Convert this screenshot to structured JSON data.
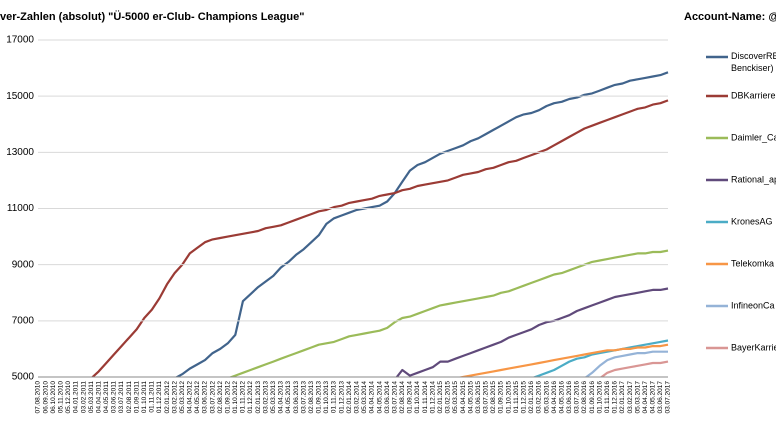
{
  "chart_data": {
    "type": "line",
    "title": "ver-Zahlen (absolut) \"Ü-5000 er-Club- Champions League\"",
    "legend_title": "Account-Name: @...",
    "legend": "right",
    "grid": true,
    "ylim": [
      5000,
      17000
    ],
    "yticks": [
      5000,
      7000,
      9000,
      11000,
      13000,
      15000,
      17000
    ],
    "categories": [
      "07.08.2010",
      "06.09.2010",
      "06.10.2010",
      "05.11.2010",
      "05.12.2010",
      "04.01.2011",
      "03.02.2011",
      "05.03.2011",
      "04.04.2011",
      "04.05.2011",
      "03.06.2011",
      "03.07.2011",
      "02.08.2011",
      "01.09.2011",
      "01.10.2011",
      "01.11.2011",
      "01.12.2011",
      "02.01.2012",
      "03.02.2012",
      "05.03.2012",
      "04.04.2012",
      "04.05.2012",
      "03.06.2012",
      "03.07.2012",
      "02.08.2012",
      "01.09.2012",
      "01.10.2012",
      "01.11.2012",
      "01.12.2012",
      "02.01.2013",
      "03.02.2013",
      "05.03.2013",
      "04.04.2013",
      "04.05.2013",
      "03.06.2013",
      "03.07.2013",
      "02.08.2013",
      "01.09.2013",
      "01.10.2013",
      "01.11.2013",
      "01.12.2013",
      "02.01.2014",
      "03.02.2014",
      "05.03.2014",
      "04.04.2014",
      "04.05.2014",
      "03.06.2014",
      "03.07.2014",
      "02.08.2014",
      "01.09.2014",
      "01.10.2014",
      "01.11.2014",
      "01.12.2014",
      "02.01.2015",
      "03.02.2015",
      "05.03.2015",
      "04.04.2015",
      "04.05.2015",
      "03.06.2015",
      "03.07.2015",
      "02.08.2015",
      "01.09.2015",
      "01.10.2015",
      "01.11.2015",
      "01.12.2015",
      "02.01.2016",
      "03.02.2016",
      "05.03.2016",
      "04.04.2016",
      "04.05.2016",
      "03.06.2016",
      "03.07.2016",
      "02.08.2016",
      "01.09.2016",
      "01.10.2016",
      "01.11.2016",
      "01.12.2016",
      "02.01.2017",
      "03.02.2017",
      "05.03.2017",
      "04.04.2017",
      "04.05.2017",
      "03.06.2017",
      "03.07.2017"
    ],
    "series": [
      {
        "name": "DiscoverRB Benckiser)",
        "color": "#41648c",
        "values": [
          null,
          null,
          null,
          null,
          null,
          null,
          null,
          null,
          null,
          null,
          null,
          null,
          null,
          null,
          null,
          null,
          null,
          null,
          4950,
          5100,
          5300,
          5450,
          5600,
          5850,
          6000,
          6200,
          6500,
          7700,
          7950,
          8200,
          8400,
          8600,
          8900,
          9100,
          9350,
          9550,
          9800,
          10050,
          10450,
          10650,
          10750,
          10850,
          10950,
          11000,
          11050,
          11100,
          11250,
          11550,
          11950,
          12350,
          12550,
          12650,
          12800,
          12950,
          13050,
          13150,
          13250,
          13400,
          13500,
          13650,
          13800,
          13950,
          14100,
          14250,
          14350,
          14400,
          14500,
          14650,
          14750,
          14800,
          14900,
          14950,
          15050,
          15100,
          15200,
          15300,
          15400,
          15450,
          15550,
          15600,
          15650,
          15700,
          15750,
          15850
        ]
      },
      {
        "name": "DBKarriere",
        "color": "#9b3b35",
        "values": [
          null,
          null,
          null,
          null,
          null,
          null,
          null,
          4950,
          5200,
          5500,
          5800,
          6100,
          6400,
          6700,
          7100,
          7400,
          7800,
          8300,
          8700,
          9000,
          9400,
          9600,
          9800,
          9900,
          9950,
          10000,
          10050,
          10100,
          10150,
          10200,
          10300,
          10350,
          10400,
          10500,
          10600,
          10700,
          10800,
          10900,
          10950,
          11050,
          11100,
          11200,
          11250,
          11300,
          11350,
          11450,
          11500,
          11550,
          11650,
          11700,
          11800,
          11850,
          11900,
          11950,
          12000,
          12100,
          12200,
          12250,
          12300,
          12400,
          12450,
          12550,
          12650,
          12700,
          12800,
          12900,
          13000,
          13100,
          13250,
          13400,
          13550,
          13700,
          13850,
          13950,
          14050,
          14150,
          14250,
          14350,
          14450,
          14550,
          14600,
          14700,
          14750,
          14850
        ]
      },
      {
        "name": "Daimler_Ca",
        "color": "#9bbb59",
        "values": [
          null,
          null,
          null,
          null,
          null,
          null,
          null,
          null,
          null,
          null,
          null,
          null,
          null,
          null,
          null,
          null,
          null,
          null,
          null,
          null,
          null,
          null,
          null,
          null,
          null,
          4950,
          5050,
          5150,
          5250,
          5350,
          5450,
          5550,
          5650,
          5750,
          5850,
          5950,
          6050,
          6150,
          6200,
          6250,
          6350,
          6450,
          6500,
          6550,
          6600,
          6650,
          6750,
          6950,
          7100,
          7150,
          7250,
          7350,
          7450,
          7550,
          7600,
          7650,
          7700,
          7750,
          7800,
          7850,
          7900,
          8000,
          8050,
          8150,
          8250,
          8350,
          8450,
          8550,
          8650,
          8700,
          8800,
          8900,
          9000,
          9100,
          9150,
          9200,
          9250,
          9300,
          9350,
          9400,
          9400,
          9450,
          9450,
          9500
        ]
      },
      {
        "name": "Rational_ap",
        "color": "#604a7b",
        "values": [
          null,
          null,
          null,
          null,
          null,
          null,
          null,
          null,
          null,
          null,
          null,
          null,
          null,
          null,
          null,
          null,
          null,
          null,
          null,
          null,
          null,
          null,
          null,
          null,
          null,
          null,
          null,
          null,
          null,
          null,
          null,
          null,
          null,
          null,
          null,
          null,
          null,
          null,
          null,
          null,
          null,
          null,
          null,
          null,
          null,
          null,
          null,
          4900,
          5250,
          5050,
          5150,
          5250,
          5350,
          5550,
          5550,
          5650,
          5750,
          5850,
          5950,
          6050,
          6150,
          6250,
          6400,
          6500,
          6600,
          6700,
          6850,
          6950,
          7000,
          7100,
          7200,
          7350,
          7450,
          7550,
          7650,
          7750,
          7850,
          7900,
          7950,
          8000,
          8050,
          8100,
          8100,
          8150
        ]
      },
      {
        "name": "KronesAG",
        "color": "#4bacc6",
        "values": [
          null,
          null,
          null,
          null,
          null,
          null,
          null,
          null,
          null,
          null,
          null,
          null,
          null,
          null,
          null,
          null,
          null,
          null,
          null,
          null,
          null,
          null,
          null,
          null,
          null,
          null,
          null,
          null,
          null,
          null,
          null,
          null,
          null,
          null,
          null,
          null,
          null,
          null,
          null,
          null,
          null,
          null,
          null,
          null,
          null,
          null,
          null,
          null,
          null,
          null,
          null,
          null,
          null,
          null,
          null,
          null,
          null,
          null,
          null,
          null,
          null,
          null,
          null,
          null,
          null,
          4950,
          5050,
          5150,
          5250,
          5400,
          5550,
          5650,
          5700,
          5800,
          5850,
          5900,
          5950,
          6000,
          6050,
          6100,
          6150,
          6200,
          6250,
          6300
        ]
      },
      {
        "name": "Telekomka",
        "color": "#f79646",
        "values": [
          null,
          null,
          null,
          null,
          null,
          null,
          null,
          null,
          null,
          null,
          null,
          null,
          null,
          null,
          null,
          null,
          null,
          null,
          null,
          null,
          null,
          null,
          null,
          null,
          null,
          null,
          null,
          null,
          null,
          null,
          null,
          null,
          null,
          null,
          null,
          null,
          null,
          null,
          null,
          null,
          null,
          null,
          null,
          null,
          null,
          null,
          null,
          null,
          null,
          null,
          null,
          null,
          null,
          null,
          null,
          4950,
          5000,
          5050,
          5100,
          5150,
          5200,
          5250,
          5300,
          5350,
          5400,
          5450,
          5500,
          5550,
          5600,
          5650,
          5700,
          5750,
          5800,
          5850,
          5900,
          5950,
          5950,
          6000,
          6000,
          6050,
          6050,
          6100,
          6100,
          6150
        ]
      },
      {
        "name": "InfineonCa",
        "color": "#95b3d7",
        "values": [
          null,
          null,
          null,
          null,
          null,
          null,
          null,
          null,
          null,
          null,
          null,
          null,
          null,
          null,
          null,
          null,
          null,
          null,
          null,
          null,
          null,
          null,
          null,
          null,
          null,
          null,
          null,
          null,
          null,
          null,
          null,
          null,
          null,
          null,
          null,
          null,
          null,
          null,
          null,
          null,
          null,
          null,
          null,
          null,
          null,
          null,
          null,
          null,
          null,
          null,
          null,
          null,
          null,
          null,
          null,
          null,
          null,
          null,
          null,
          null,
          null,
          null,
          null,
          null,
          null,
          null,
          null,
          null,
          null,
          null,
          null,
          null,
          4950,
          5150,
          5400,
          5600,
          5700,
          5750,
          5800,
          5850,
          5850,
          5900,
          5900,
          5900
        ]
      },
      {
        "name": "BayerKarrie",
        "color": "#d99694",
        "values": [
          null,
          null,
          null,
          null,
          null,
          null,
          null,
          null,
          null,
          null,
          null,
          null,
          null,
          null,
          null,
          null,
          null,
          null,
          null,
          null,
          null,
          null,
          null,
          null,
          null,
          null,
          null,
          null,
          null,
          null,
          null,
          null,
          null,
          null,
          null,
          null,
          null,
          null,
          null,
          null,
          null,
          null,
          null,
          null,
          null,
          null,
          null,
          null,
          null,
          null,
          null,
          null,
          null,
          null,
          null,
          null,
          null,
          null,
          null,
          null,
          null,
          null,
          null,
          null,
          null,
          null,
          null,
          null,
          null,
          null,
          null,
          null,
          null,
          null,
          4950,
          5150,
          5250,
          5300,
          5350,
          5400,
          5450,
          5500,
          5500,
          5550
        ]
      }
    ]
  }
}
